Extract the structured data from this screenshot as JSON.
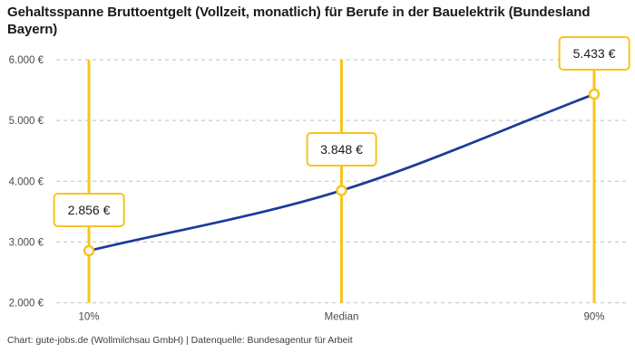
{
  "title": "Gehaltsspanne Bruttoentgelt (Vollzeit, monatlich) für Berufe in der Bauelektrik (Bundesland Bayern)",
  "footer": "Chart: gute-jobs.de (Wollmilchsau GmbH) | Datenquelle: Bundesagentur für Arbeit",
  "chart_data": {
    "type": "line",
    "categories": [
      "10%",
      "Median",
      "90%"
    ],
    "values": [
      2856,
      3848,
      5433
    ],
    "point_labels": [
      "2.856 €",
      "3.848 €",
      "5.433 €"
    ],
    "title": "Gehaltsspanne Bruttoentgelt (Vollzeit, monatlich) für Berufe in der Bauelektrik (Bundesland Bayern)",
    "xlabel": "",
    "ylabel": "",
    "ylim": [
      2000,
      6000
    ],
    "ytick_step": 1000,
    "ytick_labels": [
      "2.000 €",
      "3.000 €",
      "4.000 €",
      "5.000 €",
      "6.000 €"
    ],
    "grid": "horizontal-dashed",
    "legend_position": "none",
    "colors": {
      "line": "#1e3a99",
      "accent": "#f8c41d",
      "grid": "#cccccc",
      "tick_text": "#4a4a4a",
      "label_text": "#1a1a1a"
    }
  }
}
